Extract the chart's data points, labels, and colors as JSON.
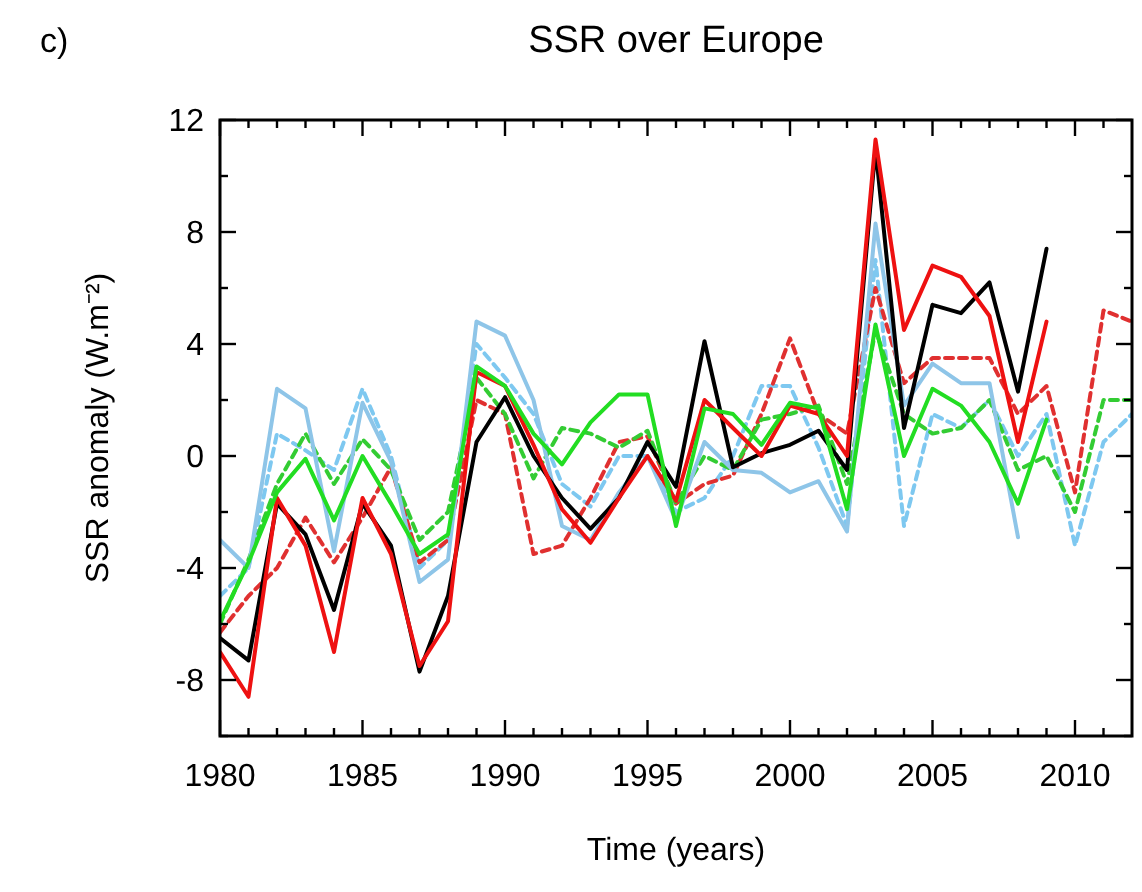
{
  "chart_data": {
    "type": "line",
    "title": "SSR over Europe",
    "xlabel": "Time (years)",
    "ylabel": "SSR anomaly (W.m⁻²)",
    "annotations": [
      "c)"
    ],
    "x": [
      1980,
      1981,
      1982,
      1983,
      1984,
      1985,
      1986,
      1987,
      1988,
      1989,
      1990,
      1991,
      1992,
      1993,
      1994,
      1995,
      1996,
      1997,
      1998,
      1999,
      2000,
      2001,
      2002,
      2003,
      2004,
      2005,
      2006,
      2007,
      2008,
      2009,
      2010,
      2011,
      2012
    ],
    "xlim": [
      1980,
      2012
    ],
    "ylim": [
      -10,
      12
    ],
    "xticks": [
      1980,
      {
        "value": 1981,
        "label": null
      },
      {
        "value": 1982,
        "label": null
      },
      {
        "value": 1983,
        "label": null
      },
      {
        "value": 1984,
        "label": null
      },
      1985,
      {
        "value": 1986,
        "label": null
      },
      {
        "value": 1987,
        "label": null
      },
      {
        "value": 1988,
        "label": null
      },
      {
        "value": 1989,
        "label": null
      },
      1990,
      {
        "value": 1991,
        "label": null
      },
      {
        "value": 1992,
        "label": null
      },
      {
        "value": 1993,
        "label": null
      },
      {
        "value": 1994,
        "label": null
      },
      1995,
      {
        "value": 1996,
        "label": null
      },
      {
        "value": 1997,
        "label": null
      },
      {
        "value": 1998,
        "label": null
      },
      {
        "value": 1999,
        "label": null
      },
      2000,
      {
        "value": 2001,
        "label": null
      },
      {
        "value": 2002,
        "label": null
      },
      {
        "value": 2003,
        "label": null
      },
      {
        "value": 2004,
        "label": null
      },
      2005,
      {
        "value": 2006,
        "label": null
      },
      {
        "value": 2007,
        "label": null
      },
      {
        "value": 2008,
        "label": null
      },
      {
        "value": 2009,
        "label": null
      },
      2010,
      {
        "value": 2011,
        "label": null
      }
    ],
    "yticks": [
      {
        "value": -10,
        "label": null
      },
      -8,
      {
        "value": -6,
        "label": null
      },
      -4,
      {
        "value": -2,
        "label": null
      },
      0,
      {
        "value": 2,
        "label": null
      },
      4,
      {
        "value": 6,
        "label": null
      },
      8,
      {
        "value": 10,
        "label": null
      },
      12
    ],
    "marker": "none",
    "series": [
      {
        "color": "#7ec8f0",
        "line_style": "dashed",
        "values": [
          -5,
          -4,
          0.8,
          0.2,
          -0.5,
          2.4,
          0,
          -4,
          -3,
          4,
          2.8,
          1.5,
          -1,
          -1.8,
          0,
          0,
          -2,
          -1.5,
          0,
          2.5,
          2.5,
          0.3,
          -2.5,
          7,
          -2.5,
          1.5,
          1,
          2,
          0,
          1.5,
          -3.2,
          0.5,
          1.5
        ]
      },
      {
        "color": "#e03030",
        "line_style": "dashed",
        "values": [
          -6.3,
          -5,
          -4,
          -2.2,
          -3.8,
          -2.2,
          -0.4,
          -3.8,
          -3,
          2,
          1.5,
          -3.5,
          -3.2,
          -1.5,
          0.5,
          0.7,
          -1.7,
          -1,
          -0.7,
          1.5,
          4.2,
          1.5,
          0.8,
          6,
          2.6,
          3.5,
          3.5,
          3.5,
          1.5,
          2.5,
          -1.3,
          5.2,
          4.8
        ]
      },
      {
        "color": "#33cc33",
        "line_style": "dashed",
        "values": [
          -6,
          -3.7,
          -1,
          0.8,
          -1,
          0.6,
          -0.5,
          -3,
          -2,
          2.8,
          1.5,
          -0.8,
          1,
          0.8,
          0.3,
          0.9,
          -1.7,
          0,
          -0.5,
          1.3,
          1.5,
          1.8,
          -1,
          4.5,
          1.5,
          0.8,
          1,
          2,
          -0.5,
          0,
          -2,
          2,
          2
        ]
      },
      {
        "color": "#8ec5e8",
        "line_style": "solid",
        "values": [
          -3,
          -4,
          2.4,
          1.7,
          -3.4,
          1.9,
          -0.2,
          -4.5,
          -3.7,
          4.8,
          4.3,
          2,
          -2.5,
          -3,
          -1.3,
          0,
          -2.3,
          0.5,
          -0.5,
          -0.6,
          -1.3,
          -0.9,
          -2.7,
          8.3,
          1.8,
          3.3,
          2.6,
          2.6,
          -2.9,
          null,
          null,
          null,
          null
        ]
      },
      {
        "color": "#000000",
        "line_style": "solid",
        "values": [
          -6.5,
          -7.3,
          -1.7,
          -2.8,
          -5.5,
          -1.7,
          -3.2,
          -7.7,
          -5,
          0.5,
          2.1,
          0,
          -1.5,
          -2.6,
          -1.5,
          0.5,
          -1.1,
          4.1,
          -0.4,
          0.1,
          0.4,
          0.9,
          -0.5,
          11,
          1,
          5.4,
          5.1,
          6.2,
          2.3,
          7.4,
          null,
          null,
          null
        ]
      },
      {
        "color": "#ee1111",
        "line_style": "solid",
        "values": [
          -7,
          -8.6,
          -1.5,
          -3.2,
          -7,
          -1.5,
          -3.5,
          -7.5,
          -5.9,
          3,
          2.5,
          0.4,
          -1.9,
          -3.1,
          -1.5,
          0,
          -1.6,
          2,
          1,
          0,
          1.8,
          1.5,
          0,
          11.3,
          4.5,
          6.8,
          6.4,
          5,
          0.5,
          4.8,
          null,
          null,
          null
        ]
      },
      {
        "color": "#22dd22",
        "line_style": "solid",
        "values": [
          -5.9,
          -3.8,
          -1.3,
          -0.1,
          -2.3,
          0,
          -1.7,
          -3.5,
          -2.8,
          3.2,
          2.5,
          0.8,
          -0.3,
          1.2,
          2.2,
          2.2,
          -2.5,
          1.7,
          1.5,
          0.4,
          1.9,
          1.7,
          -1.9,
          4.7,
          0,
          2.4,
          1.8,
          0.5,
          -1.7,
          1.3,
          null,
          null,
          null
        ]
      }
    ]
  }
}
